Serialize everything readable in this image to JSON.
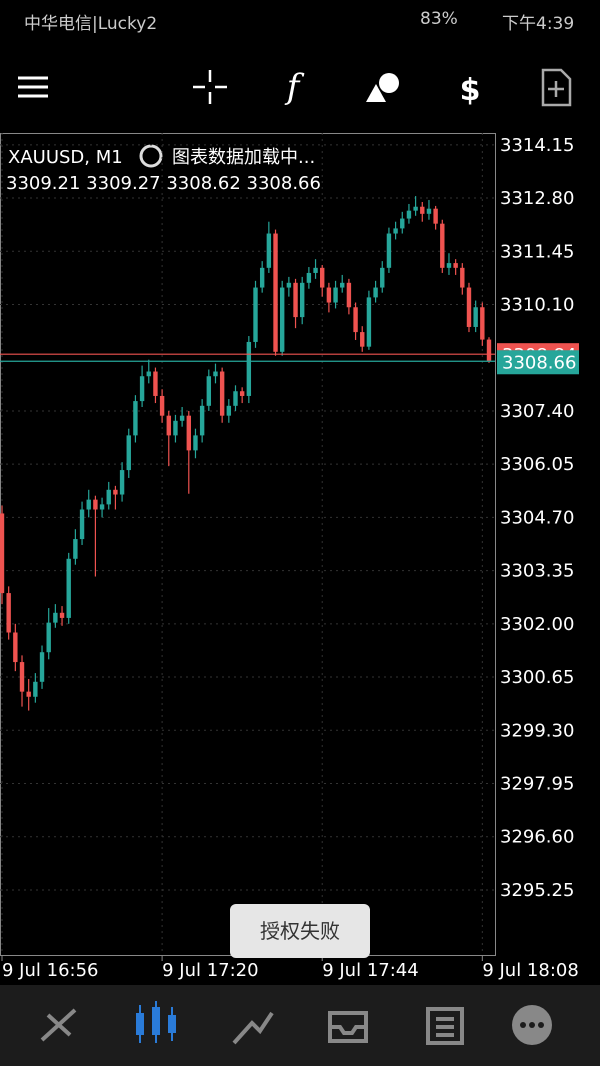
{
  "status_bar": {
    "carrier": "中华电信|Lucky2",
    "battery": "83%",
    "time": "下午4:39"
  },
  "toast": "授权失败",
  "chart_data": {
    "type": "candlestick",
    "symbol": "XAUUSD, M1",
    "loading": "图表数据加载中...",
    "up_color": "#26a69a",
    "down_color": "#ef5350",
    "grid": true,
    "ylim": [
      3293.6,
      3314.45
    ],
    "xlim": [
      -0.3,
      73.9
    ],
    "yticks": [
      3314.15,
      {
        "value": 3312.8,
        "label": "3312.80"
      },
      3311.45,
      {
        "value": 3310.1,
        "label": "3310.10"
      },
      {
        "value": 3307.4,
        "label": "3307.40"
      },
      3306.05,
      {
        "value": 3304.7,
        "label": "3304.70"
      },
      3303.35,
      {
        "value": 3302,
        "label": "3302.00"
      },
      3300.65,
      {
        "value": 3299.3,
        "label": "3299.30"
      },
      3297.95,
      {
        "value": 3296.6,
        "label": "3296.60"
      },
      3295.25
    ],
    "xticks": [
      {
        "value": 0,
        "label": "9 Jul 16:56"
      },
      {
        "value": 24,
        "label": "9 Jul 17:20"
      },
      {
        "value": 48,
        "label": "9 Jul 17:44"
      },
      {
        "value": 72,
        "label": "9 Jul 18:08"
      }
    ],
    "price_lines": [
      {
        "value": 3308.84,
        "color": "#ef5350"
      },
      {
        "value": 3308.66,
        "color": "#26a69a"
      }
    ],
    "ohlc": [
      [
        3304.8,
        3305.0,
        3302.5,
        3302.78
      ],
      [
        3302.78,
        3302.95,
        3301.6,
        3301.78
      ],
      [
        3301.78,
        3302.0,
        3300.8,
        3301.03
      ],
      [
        3301.03,
        3301.2,
        3299.9,
        3300.28
      ],
      [
        3300.28,
        3300.6,
        3299.8,
        3300.15
      ],
      [
        3300.15,
        3300.75,
        3300.0,
        3300.53
      ],
      [
        3300.53,
        3301.45,
        3300.35,
        3301.28
      ],
      [
        3301.28,
        3302.4,
        3301.1,
        3302.03
      ],
      [
        3302.03,
        3302.5,
        3301.9,
        3302.28
      ],
      [
        3302.28,
        3302.45,
        3301.95,
        3302.15
      ],
      [
        3302.15,
        3303.8,
        3302.0,
        3303.65
      ],
      [
        3303.65,
        3304.4,
        3303.5,
        3304.15
      ],
      [
        3304.15,
        3305.1,
        3304.0,
        3304.9
      ],
      [
        3304.9,
        3305.4,
        3304.7,
        3305.15
      ],
      [
        3305.15,
        3305.25,
        3303.2,
        3304.9
      ],
      [
        3304.9,
        3305.2,
        3304.7,
        3305.03
      ],
      [
        3305.03,
        3305.6,
        3304.9,
        3305.4
      ],
      [
        3305.4,
        3305.5,
        3304.9,
        3305.28
      ],
      [
        3305.28,
        3306.1,
        3305.1,
        3305.9
      ],
      [
        3305.9,
        3306.95,
        3305.7,
        3306.78
      ],
      [
        3306.78,
        3307.8,
        3306.6,
        3307.65
      ],
      [
        3307.65,
        3308.55,
        3307.5,
        3308.28
      ],
      [
        3308.28,
        3308.7,
        3308.1,
        3308.4
      ],
      [
        3308.4,
        3308.5,
        3307.6,
        3307.78
      ],
      [
        3307.78,
        3307.95,
        3307.1,
        3307.28
      ],
      [
        3307.28,
        3307.4,
        3306.0,
        3306.78
      ],
      [
        3306.78,
        3307.3,
        3306.6,
        3307.15
      ],
      [
        3307.15,
        3307.5,
        3307.0,
        3307.28
      ],
      [
        3307.28,
        3307.4,
        3305.3,
        3306.4
      ],
      [
        3306.4,
        3306.95,
        3306.2,
        3306.78
      ],
      [
        3306.78,
        3307.7,
        3306.6,
        3307.53
      ],
      [
        3307.53,
        3308.45,
        3307.4,
        3308.28
      ],
      [
        3308.28,
        3308.6,
        3308.1,
        3308.4
      ],
      [
        3308.4,
        3308.5,
        3307.1,
        3307.28
      ],
      [
        3307.28,
        3307.7,
        3307.1,
        3307.53
      ],
      [
        3307.53,
        3308.05,
        3307.4,
        3307.9
      ],
      [
        3307.9,
        3308.0,
        3307.6,
        3307.78
      ],
      [
        3307.78,
        3309.3,
        3307.6,
        3309.15
      ],
      [
        3309.15,
        3310.7,
        3309.0,
        3310.53
      ],
      [
        3310.53,
        3311.2,
        3310.4,
        3311.03
      ],
      [
        3311.03,
        3312.2,
        3310.9,
        3311.9
      ],
      [
        3311.9,
        3312.0,
        3308.8,
        3308.9
      ],
      [
        3308.9,
        3310.7,
        3308.8,
        3310.53
      ],
      [
        3310.53,
        3310.8,
        3310.3,
        3310.65
      ],
      [
        3310.65,
        3310.75,
        3309.5,
        3309.78
      ],
      [
        3309.78,
        3310.8,
        3309.6,
        3310.65
      ],
      [
        3310.65,
        3311.05,
        3310.5,
        3310.9
      ],
      [
        3310.9,
        3311.25,
        3310.75,
        3311.03
      ],
      [
        3311.03,
        3311.1,
        3310.3,
        3310.53
      ],
      [
        3310.53,
        3310.65,
        3309.9,
        3310.15
      ],
      [
        3310.15,
        3310.7,
        3310.0,
        3310.53
      ],
      [
        3310.53,
        3310.85,
        3310.4,
        3310.65
      ],
      [
        3310.65,
        3310.75,
        3309.85,
        3310.03
      ],
      [
        3310.03,
        3310.15,
        3309.2,
        3309.4
      ],
      [
        3309.4,
        3309.55,
        3308.9,
        3309.03
      ],
      [
        3309.03,
        3310.45,
        3308.95,
        3310.28
      ],
      [
        3310.28,
        3310.7,
        3310.15,
        3310.53
      ],
      [
        3310.53,
        3311.2,
        3310.4,
        3311.03
      ],
      [
        3311.03,
        3312.05,
        3310.9,
        3311.9
      ],
      [
        3311.9,
        3312.2,
        3311.75,
        3312.03
      ],
      [
        3312.03,
        3312.45,
        3311.9,
        3312.28
      ],
      [
        3312.28,
        3312.65,
        3312.15,
        3312.48
      ],
      [
        3312.48,
        3312.85,
        3312.35,
        3312.58
      ],
      [
        3312.58,
        3312.7,
        3312.2,
        3312.4
      ],
      [
        3312.4,
        3312.75,
        3312.25,
        3312.53
      ],
      [
        3312.53,
        3312.6,
        3312.0,
        3312.15
      ],
      [
        3312.15,
        3312.25,
        3310.9,
        3311.03
      ],
      [
        3311.03,
        3311.4,
        3310.85,
        3311.15
      ],
      [
        3311.15,
        3311.25,
        3310.85,
        3311.03
      ],
      [
        3311.03,
        3311.15,
        3310.35,
        3310.53
      ],
      [
        3310.53,
        3310.65,
        3309.4,
        3309.53
      ],
      [
        3309.53,
        3310.2,
        3309.4,
        3310.03
      ],
      [
        3310.03,
        3310.15,
        3309.05,
        3309.21
      ],
      [
        3309.21,
        3309.27,
        3308.62,
        3308.66
      ]
    ]
  }
}
